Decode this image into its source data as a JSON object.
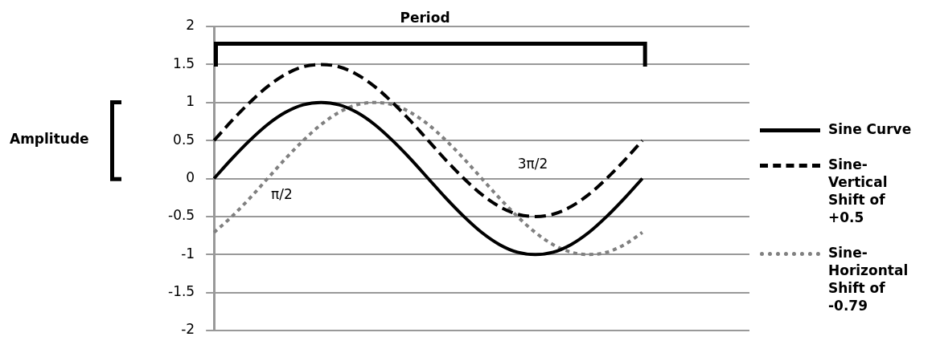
{
  "chart_data": {
    "type": "line",
    "categories": [
      null,
      null,
      null,
      null,
      null,
      null,
      null,
      null,
      null,
      null,
      null,
      null,
      null,
      null,
      null,
      null,
      null,
      null,
      null,
      null,
      null,
      null,
      null,
      null,
      null,
      null,
      null,
      null,
      null,
      null,
      null
    ],
    "series": [
      {
        "name": "Sine Curve",
        "color": "#000000",
        "line_style": "solid",
        "values": [
          0,
          0.26,
          0.5,
          0.71,
          0.87,
          0.97,
          1,
          0.97,
          0.87,
          0.71,
          0.5,
          0.26,
          0,
          -0.26,
          -0.5,
          -0.71,
          -0.87,
          -0.97,
          -1,
          -0.97,
          -0.87,
          -0.71,
          -0.5,
          -0.26,
          0,
          null,
          null,
          null,
          null,
          null,
          null
        ]
      },
      {
        "name": "Sine-Vertical Shift of +0.5",
        "color": "#000000",
        "line_style": "dashed",
        "values": [
          0.5,
          0.76,
          1,
          1.21,
          1.37,
          1.47,
          1.5,
          1.47,
          1.37,
          1.21,
          1,
          0.76,
          0.5,
          0.24,
          0,
          -0.21,
          -0.37,
          -0.47,
          -0.5,
          -0.47,
          -0.37,
          -0.21,
          0,
          0.24,
          0.5,
          null,
          null,
          null,
          null,
          null,
          null
        ]
      },
      {
        "name": "Sine-Horizontal Shift of -0.79",
        "color": "#808080",
        "line_style": "dotted",
        "values": [
          -0.71,
          -0.5,
          -0.26,
          0,
          0.26,
          0.5,
          0.71,
          0.87,
          0.97,
          1,
          0.97,
          0.87,
          0.71,
          0.5,
          0.26,
          0,
          -0.26,
          -0.5,
          -0.71,
          -0.87,
          -0.97,
          -1,
          -0.97,
          -0.87,
          -0.71,
          null,
          null,
          null,
          null,
          null,
          null
        ]
      }
    ],
    "ylim": [
      -2,
      2
    ],
    "yticks": [
      -2,
      -1.5,
      -1,
      -0.5,
      0,
      0.5,
      1,
      1.5,
      2
    ],
    "grid": "y",
    "legend": "right",
    "marker": "none",
    "tick_labels": "y",
    "annotations": [
      "Period",
      "Amplitude",
      "π/2",
      "3π/2"
    ]
  }
}
